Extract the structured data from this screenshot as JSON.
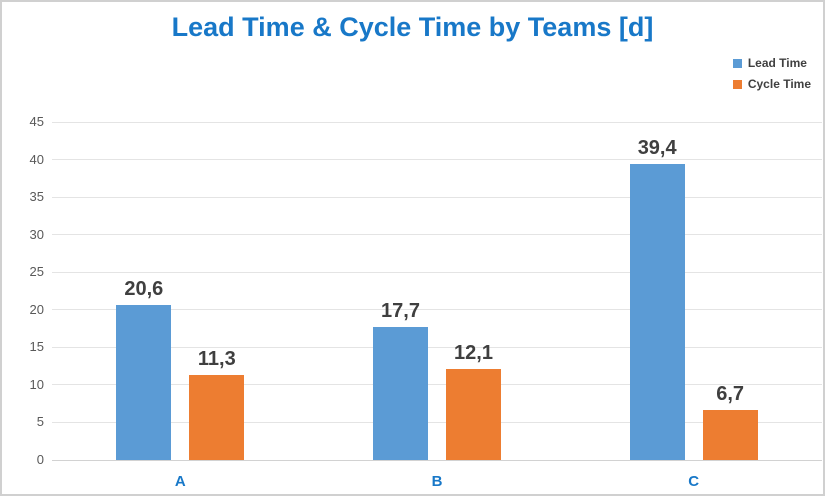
{
  "title": "Lead Time & Cycle Time by Teams [d]",
  "colors": {
    "title_text": "#1878c8",
    "category_text": "#1878c8",
    "value_label_text": "#3f3f3f",
    "tick_text": "#595959",
    "legend_text": "#404040",
    "gridline": "#e4e4e4",
    "lead_time": "#5b9bd5",
    "cycle_time": "#ed7d31"
  },
  "legend": {
    "position": "top-right",
    "items": [
      {
        "label": "Lead Time",
        "color": "#5b9bd5"
      },
      {
        "label": "Cycle Time",
        "color": "#ed7d31"
      }
    ]
  },
  "chart_data": {
    "type": "bar",
    "title": "Lead Time & Cycle Time by Teams [d]",
    "categories": [
      "A",
      "B",
      "C"
    ],
    "series": [
      {
        "name": "Lead Time",
        "color": "#5b9bd5",
        "values": [
          20.6,
          17.7,
          39.4
        ],
        "labels": [
          "20,6",
          "17,7",
          "39,4"
        ]
      },
      {
        "name": "Cycle Time",
        "color": "#ed7d31",
        "values": [
          11.3,
          12.1,
          6.7
        ],
        "labels": [
          "11,3",
          "12,1",
          "6,7"
        ]
      }
    ],
    "xlabel": "",
    "ylabel": "",
    "ylim": [
      0,
      45
    ],
    "yticks": [
      0,
      5,
      10,
      15,
      20,
      25,
      30,
      35,
      40,
      45
    ],
    "grid": true,
    "legend_position": "top-right",
    "decimal_separator": ","
  }
}
